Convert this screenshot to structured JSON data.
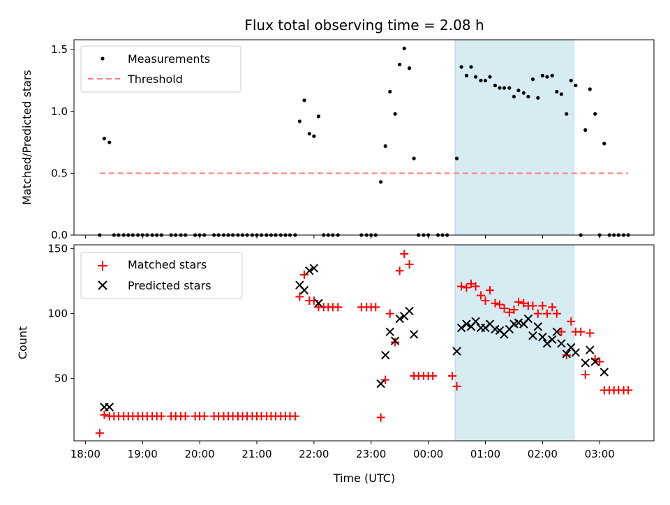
{
  "chart_data": [
    {
      "type": "scatter",
      "title": "Flux total observing time = 2.08 h",
      "ylabel": "Matched/Predicted stars",
      "xlabel": "",
      "ylim": [
        0,
        1.58
      ],
      "yticks": [
        0.0,
        0.5,
        1.0,
        1.5
      ],
      "yticklabels": [
        "0.0",
        "0.5",
        "1.0",
        "1.5"
      ],
      "shaded_span": {
        "x_start_h": 24.47,
        "x_end_h": 26.55,
        "color": "#add8e6"
      },
      "legend": {
        "placement": "top-left",
        "entries": [
          "Measurements",
          "Threshold"
        ]
      },
      "threshold": {
        "name": "Threshold",
        "y": 0.5,
        "x_start_h": 18.25,
        "x_end_h": 27.5,
        "color": "#ff7f7f"
      },
      "series": [
        {
          "name": "Measurements",
          "color": "#000000",
          "points": [
            [
              18.25,
              0
            ],
            [
              18.33,
              0.78
            ],
            [
              18.42,
              0.75
            ],
            [
              18.5,
              0
            ],
            [
              18.58,
              0
            ],
            [
              18.67,
              0
            ],
            [
              18.75,
              0
            ],
            [
              18.83,
              0
            ],
            [
              18.92,
              0
            ],
            [
              19.0,
              0
            ],
            [
              19.08,
              0
            ],
            [
              19.17,
              0
            ],
            [
              19.25,
              0
            ],
            [
              19.33,
              0
            ],
            [
              19.5,
              0
            ],
            [
              19.58,
              0
            ],
            [
              19.67,
              0
            ],
            [
              19.75,
              0
            ],
            [
              19.92,
              0
            ],
            [
              20.0,
              0
            ],
            [
              20.08,
              0
            ],
            [
              20.25,
              0
            ],
            [
              20.33,
              0
            ],
            [
              20.42,
              0
            ],
            [
              20.5,
              0
            ],
            [
              20.58,
              0
            ],
            [
              20.67,
              0
            ],
            [
              20.75,
              0
            ],
            [
              20.83,
              0
            ],
            [
              20.92,
              0
            ],
            [
              21.0,
              0
            ],
            [
              21.08,
              0
            ],
            [
              21.17,
              0
            ],
            [
              21.25,
              0
            ],
            [
              21.33,
              0
            ],
            [
              21.42,
              0
            ],
            [
              21.5,
              0
            ],
            [
              21.58,
              0
            ],
            [
              21.67,
              0
            ],
            [
              21.75,
              0.92
            ],
            [
              21.83,
              1.09
            ],
            [
              21.92,
              0.82
            ],
            [
              22.0,
              0.8
            ],
            [
              22.08,
              0.96
            ],
            [
              22.17,
              0
            ],
            [
              22.25,
              0
            ],
            [
              22.33,
              0
            ],
            [
              22.42,
              0
            ],
            [
              22.83,
              0
            ],
            [
              22.92,
              0
            ],
            [
              23.0,
              0
            ],
            [
              23.08,
              0
            ],
            [
              23.17,
              0.43
            ],
            [
              23.25,
              0.72
            ],
            [
              23.33,
              1.16
            ],
            [
              23.42,
              0.98
            ],
            [
              23.5,
              1.38
            ],
            [
              23.58,
              1.51
            ],
            [
              23.67,
              1.35
            ],
            [
              23.75,
              0.62
            ],
            [
              23.83,
              0
            ],
            [
              23.92,
              0
            ],
            [
              24.0,
              0
            ],
            [
              24.17,
              0
            ],
            [
              24.25,
              0
            ],
            [
              24.33,
              0
            ],
            [
              24.5,
              0.62
            ],
            [
              24.58,
              1.36
            ],
            [
              24.67,
              1.29
            ],
            [
              24.75,
              1.36
            ],
            [
              24.83,
              1.28
            ],
            [
              24.92,
              1.25
            ],
            [
              25.0,
              1.25
            ],
            [
              25.08,
              1.28
            ],
            [
              25.17,
              1.21
            ],
            [
              25.25,
              1.19
            ],
            [
              25.33,
              1.19
            ],
            [
              25.42,
              1.19
            ],
            [
              25.5,
              1.12
            ],
            [
              25.58,
              1.17
            ],
            [
              25.67,
              1.15
            ],
            [
              25.75,
              1.12
            ],
            [
              25.83,
              1.26
            ],
            [
              25.92,
              1.11
            ],
            [
              26.0,
              1.29
            ],
            [
              26.08,
              1.28
            ],
            [
              26.17,
              1.29
            ],
            [
              26.25,
              1.16
            ],
            [
              26.33,
              1.14
            ],
            [
              26.42,
              0.98
            ],
            [
              26.5,
              1.25
            ],
            [
              26.58,
              1.21
            ],
            [
              26.67,
              0
            ],
            [
              26.75,
              0.85
            ],
            [
              26.83,
              1.18
            ],
            [
              26.92,
              0.98
            ],
            [
              27.0,
              0
            ],
            [
              27.08,
              0.74
            ],
            [
              27.17,
              0
            ],
            [
              27.25,
              0
            ],
            [
              27.33,
              0
            ],
            [
              27.42,
              0
            ],
            [
              27.5,
              0
            ]
          ]
        }
      ]
    },
    {
      "type": "scatter",
      "title": "",
      "xlabel": "Time (UTC)",
      "ylabel": "Count",
      "ylim": [
        2,
        153
      ],
      "yticks": [
        50,
        100,
        150
      ],
      "yticklabels": [
        "50",
        "100",
        "150"
      ],
      "xlim_h": [
        17.8,
        27.95
      ],
      "xticks_h": [
        18,
        19,
        20,
        21,
        22,
        23,
        24,
        25,
        26,
        27
      ],
      "xticklabels": [
        "18:00",
        "19:00",
        "20:00",
        "21:00",
        "22:00",
        "23:00",
        "00:00",
        "01:00",
        "02:00",
        "03:00"
      ],
      "shaded_span": {
        "x_start_h": 24.47,
        "x_end_h": 26.55,
        "color": "#add8e6"
      },
      "legend": {
        "placement": "top-left",
        "entries": [
          "Matched stars",
          "Predicted stars"
        ]
      },
      "series": [
        {
          "name": "Matched stars",
          "marker": "+",
          "color": "#ff0000",
          "points": [
            [
              18.25,
              8
            ],
            [
              18.33,
              22
            ],
            [
              18.42,
              21
            ],
            [
              18.5,
              21
            ],
            [
              18.58,
              21
            ],
            [
              18.67,
              21
            ],
            [
              18.75,
              21
            ],
            [
              18.83,
              21
            ],
            [
              18.92,
              21
            ],
            [
              19.0,
              21
            ],
            [
              19.08,
              21
            ],
            [
              19.17,
              21
            ],
            [
              19.25,
              21
            ],
            [
              19.33,
              21
            ],
            [
              19.5,
              21
            ],
            [
              19.58,
              21
            ],
            [
              19.67,
              21
            ],
            [
              19.75,
              21
            ],
            [
              19.92,
              21
            ],
            [
              20.0,
              21
            ],
            [
              20.08,
              21
            ],
            [
              20.25,
              21
            ],
            [
              20.33,
              21
            ],
            [
              20.42,
              21
            ],
            [
              20.5,
              21
            ],
            [
              20.58,
              21
            ],
            [
              20.67,
              21
            ],
            [
              20.75,
              21
            ],
            [
              20.83,
              21
            ],
            [
              20.92,
              21
            ],
            [
              21.0,
              21
            ],
            [
              21.08,
              21
            ],
            [
              21.17,
              21
            ],
            [
              21.25,
              21
            ],
            [
              21.33,
              21
            ],
            [
              21.42,
              21
            ],
            [
              21.5,
              21
            ],
            [
              21.58,
              21
            ],
            [
              21.67,
              21
            ],
            [
              21.75,
              113
            ],
            [
              21.83,
              130
            ],
            [
              21.92,
              110
            ],
            [
              22.0,
              110
            ],
            [
              22.08,
              105
            ],
            [
              22.17,
              105
            ],
            [
              22.25,
              105
            ],
            [
              22.33,
              105
            ],
            [
              22.42,
              105
            ],
            [
              22.83,
              105
            ],
            [
              22.92,
              105
            ],
            [
              23.0,
              105
            ],
            [
              23.08,
              105
            ],
            [
              23.17,
              20
            ],
            [
              23.25,
              49
            ],
            [
              23.33,
              100
            ],
            [
              23.42,
              78
            ],
            [
              23.5,
              133
            ],
            [
              23.58,
              146
            ],
            [
              23.67,
              138
            ],
            [
              23.75,
              52
            ],
            [
              23.83,
              52
            ],
            [
              23.92,
              52
            ],
            [
              24.0,
              52
            ],
            [
              24.08,
              52
            ],
            [
              24.42,
              52
            ],
            [
              24.5,
              44
            ],
            [
              24.58,
              121
            ],
            [
              24.67,
              120
            ],
            [
              24.75,
              123
            ],
            [
              24.83,
              121
            ],
            [
              24.92,
              114
            ],
            [
              25.0,
              110
            ],
            [
              25.08,
              118
            ],
            [
              25.17,
              108
            ],
            [
              25.25,
              107
            ],
            [
              25.33,
              104
            ],
            [
              25.42,
              101
            ],
            [
              25.5,
              103
            ],
            [
              25.58,
              109
            ],
            [
              25.67,
              108
            ],
            [
              25.75,
              106
            ],
            [
              25.83,
              106
            ],
            [
              25.92,
              100
            ],
            [
              26.0,
              106
            ],
            [
              26.08,
              100
            ],
            [
              26.17,
              105
            ],
            [
              26.25,
              100
            ],
            [
              26.33,
              86
            ],
            [
              26.42,
              68
            ],
            [
              26.5,
              94
            ],
            [
              26.58,
              86
            ],
            [
              26.67,
              86
            ],
            [
              26.75,
              53
            ],
            [
              26.83,
              85
            ],
            [
              26.92,
              65
            ],
            [
              27.0,
              63
            ],
            [
              27.08,
              41
            ],
            [
              27.17,
              41
            ],
            [
              27.25,
              41
            ],
            [
              27.33,
              41
            ],
            [
              27.42,
              41
            ],
            [
              27.5,
              41
            ]
          ]
        },
        {
          "name": "Predicted stars",
          "marker": "x",
          "color": "#000000",
          "points": [
            [
              18.33,
              28
            ],
            [
              18.42,
              28
            ],
            [
              21.75,
              122
            ],
            [
              21.83,
              118
            ],
            [
              21.92,
              133
            ],
            [
              22.0,
              135
            ],
            [
              22.08,
              108
            ],
            [
              23.17,
              46
            ],
            [
              23.25,
              68
            ],
            [
              23.33,
              86
            ],
            [
              23.42,
              79
            ],
            [
              23.5,
              96
            ],
            [
              23.58,
              98
            ],
            [
              23.67,
              102
            ],
            [
              23.75,
              84
            ],
            [
              24.5,
              71
            ],
            [
              24.58,
              89
            ],
            [
              24.67,
              92
            ],
            [
              24.75,
              90
            ],
            [
              24.83,
              94
            ],
            [
              24.92,
              89
            ],
            [
              25.0,
              89
            ],
            [
              25.08,
              92
            ],
            [
              25.17,
              88
            ],
            [
              25.25,
              87
            ],
            [
              25.33,
              84
            ],
            [
              25.42,
              88
            ],
            [
              25.5,
              92
            ],
            [
              25.58,
              93
            ],
            [
              25.67,
              92
            ],
            [
              25.75,
              96
            ],
            [
              25.83,
              83
            ],
            [
              25.92,
              90
            ],
            [
              26.0,
              82
            ],
            [
              26.08,
              77
            ],
            [
              26.17,
              80
            ],
            [
              26.25,
              86
            ],
            [
              26.33,
              77
            ],
            [
              26.42,
              69
            ],
            [
              26.5,
              74
            ],
            [
              26.58,
              70
            ],
            [
              26.75,
              62
            ],
            [
              26.83,
              72
            ],
            [
              26.92,
              63
            ],
            [
              27.08,
              55
            ]
          ]
        }
      ]
    }
  ]
}
